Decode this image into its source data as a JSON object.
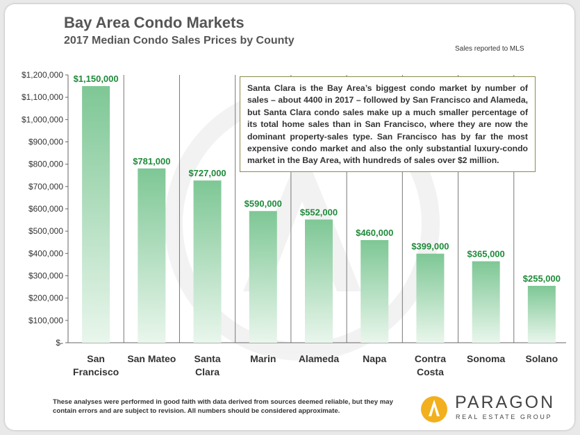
{
  "header": {
    "title": "Bay Area Condo Markets",
    "subtitle": "2017 Median Condo Sales Prices by County",
    "source_note": "Sales reported to MLS"
  },
  "annotation": "Santa Clara is the Bay Area’s biggest condo market by number of sales – about 4400 in 2017 – followed by San Francisco and Alameda, but Santa Clara condo sales make up a much smaller percentage of its total home sales than in San Francisco, where they are now the dominant property-sales type.  San Francisco has by far the most expensive condo market and also the only substantial luxury-condo market in the Bay Area, with hundreds of sales over $2 million.",
  "footer": {
    "disclaimer": "These analyses were performed in good faith with data derived from sources deemed reliable, but they may contain errors and are subject to revision.  All numbers should be considered approximate."
  },
  "logo": {
    "name": "PARAGON",
    "tagline": "REAL ESTATE GROUP"
  },
  "colors": {
    "bar_top": "#7ec795",
    "bar_bottom": "#e9f6ec",
    "value_label": "#1f8a3a",
    "axis": "#666666",
    "divider": "#777777"
  },
  "chart_data": {
    "type": "bar",
    "title": "2017 Median Condo Sales Prices by County",
    "categories": [
      [
        "San",
        "Francisco"
      ],
      [
        "San Mateo"
      ],
      [
        "Santa",
        "Clara"
      ],
      [
        "Marin"
      ],
      [
        "Alameda"
      ],
      [
        "Napa"
      ],
      [
        "Contra",
        "Costa"
      ],
      [
        "Sonoma"
      ],
      [
        "Solano"
      ]
    ],
    "values": [
      1150000,
      781000,
      727000,
      590000,
      552000,
      460000,
      399000,
      365000,
      255000
    ],
    "value_labels": [
      "$1,150,000",
      "$781,000",
      "$727,000",
      "$590,000",
      "$552,000",
      "$460,000",
      "$399,000",
      "$365,000",
      "$255,000"
    ],
    "ylim": [
      0,
      1200000
    ],
    "yticks": [
      0,
      100000,
      200000,
      300000,
      400000,
      500000,
      600000,
      700000,
      800000,
      900000,
      1000000,
      1100000,
      1200000
    ],
    "ytick_labels": [
      "$-",
      "$100,000",
      "$200,000",
      "$300,000",
      "$400,000",
      "$500,000",
      "$600,000",
      "$700,000",
      "$800,000",
      "$900,000",
      "$1,000,000",
      "$1,100,000",
      "$1,200,000"
    ],
    "xlabel": "",
    "ylabel": "",
    "grid": false
  }
}
